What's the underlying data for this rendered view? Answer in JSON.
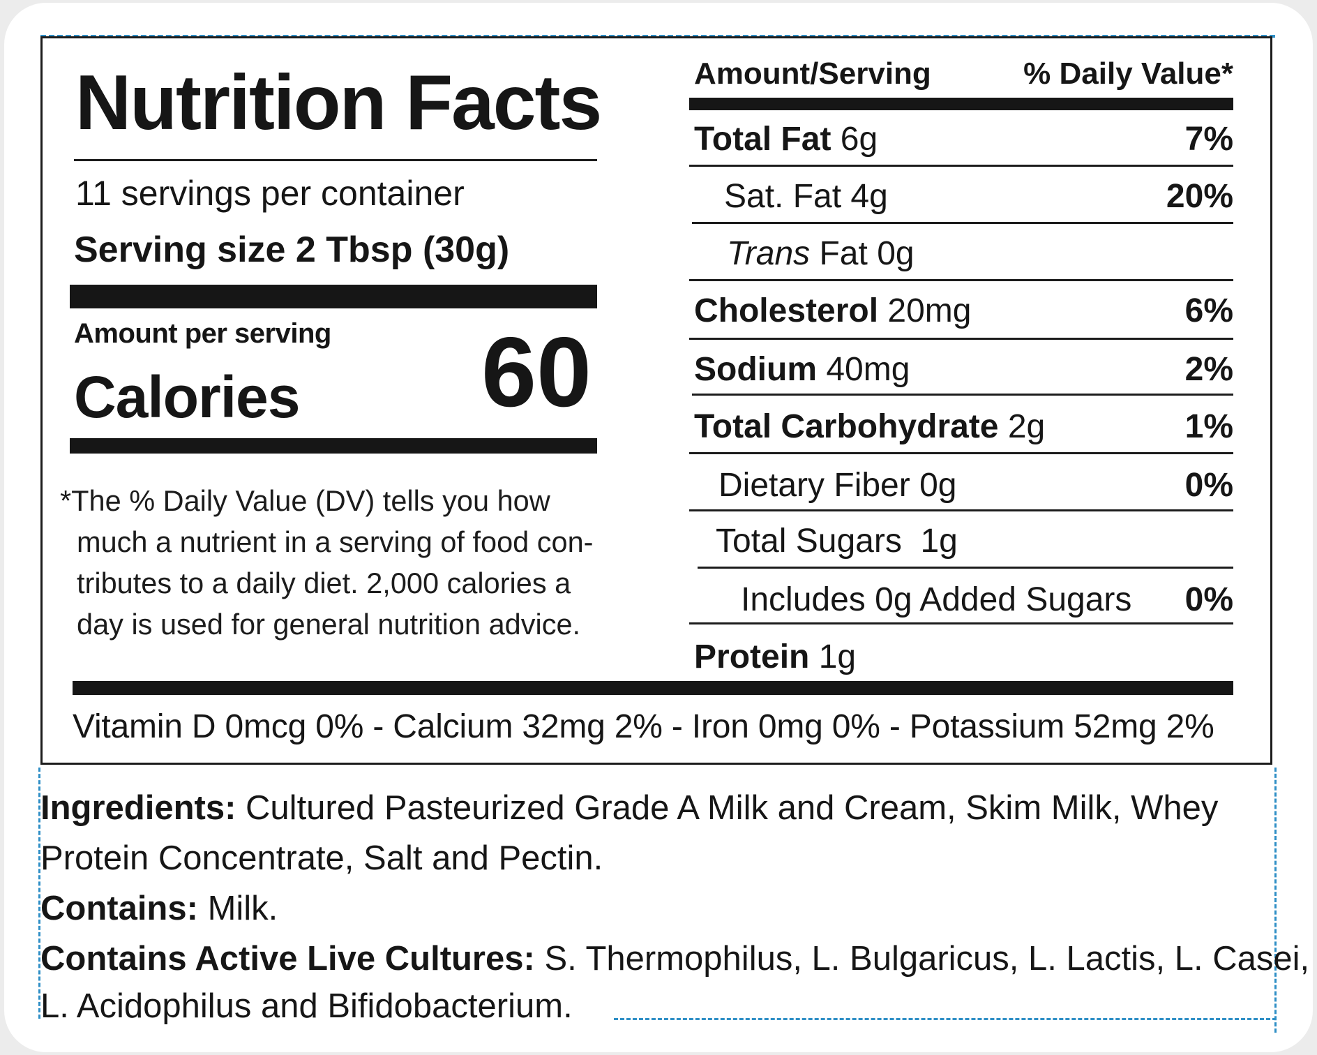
{
  "label": {
    "title": "Nutrition Facts",
    "servings_per_container": "11 servings per container",
    "serving_size": "Serving size 2 Tbsp (30g)",
    "amount_per_serving": "Amount per serving",
    "calories_label": "Calories",
    "calories_value": "60",
    "footnote_lines": [
      "*The % Daily Value (DV) tells you how",
      "much a nutrient in a serving of food con-",
      "tributes to a daily diet. 2,000 calories a",
      "day is used for general nutrition advice."
    ],
    "header_amount": "Amount/Serving",
    "header_dv": "% Daily Value*",
    "nutrients": [
      {
        "name": "Total Fat",
        "amount": "6g",
        "dv": "7%"
      },
      {
        "name": "Sat. Fat",
        "amount": "4g",
        "dv": "20%"
      },
      {
        "name": "Trans",
        "name_rest": "Fat",
        "amount": "0g",
        "dv": ""
      },
      {
        "name": "Cholesterol",
        "amount": "20mg",
        "dv": "6%"
      },
      {
        "name": "Sodium",
        "amount": "40mg",
        "dv": "2%"
      },
      {
        "name": "Total Carbohydrate",
        "amount": "2g",
        "dv": "1%"
      },
      {
        "name": "Dietary Fiber",
        "amount": "0g",
        "dv": "0%"
      },
      {
        "name": "Total Sugars",
        "amount": "1g",
        "dv": ""
      },
      {
        "name": "Includes 0g Added Sugars",
        "amount": "",
        "dv": "0%"
      },
      {
        "name": "Protein",
        "amount": "1g",
        "dv": ""
      }
    ],
    "vitamins": "Vitamin D 0mcg 0% - Calcium 32mg 2% - Iron 0mg 0% - Potassium 52mg 2%"
  },
  "ingredients": {
    "label": "Ingredients:",
    "line1": "Cultured Pasteurized Grade A Milk and Cream, Skim Milk, Whey",
    "line2": "Protein Concentrate, Salt and Pectin.",
    "contains_label": "Contains:",
    "contains_value": "Milk.",
    "cultures_label": "Contains Active Live Cultures:",
    "cultures_line1": "S. Thermophilus, L. Bulgaricus, L. Lactis, L. Casei,",
    "cultures_line2": "L. Acidophilus and Bifidobacterium."
  },
  "colors": {
    "ink": "#161616",
    "dashed_border": "#2f8fc6"
  }
}
